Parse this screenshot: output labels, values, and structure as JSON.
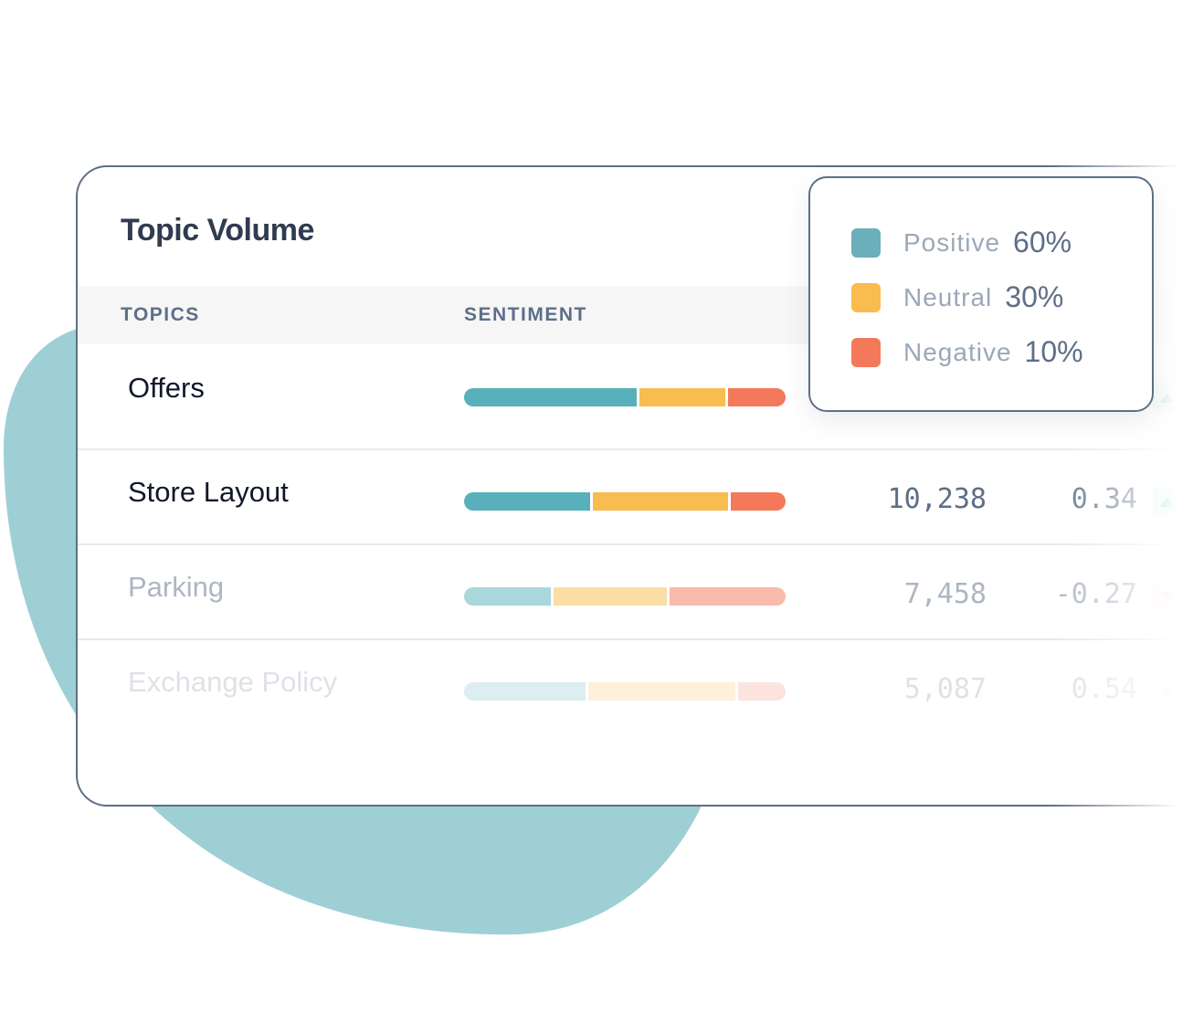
{
  "card": {
    "title": "Topic Volume"
  },
  "table": {
    "headers": {
      "topics": "TOPICS",
      "sentiment": "SENTIMENT"
    },
    "rows": [
      {
        "topic": "Offers",
        "sentiment": {
          "positive": 54,
          "neutral": 27,
          "negative": 18
        },
        "volume": "",
        "score": "",
        "trend": "up",
        "opacity": 1
      },
      {
        "topic": "Store Layout",
        "sentiment": {
          "positive": 39,
          "neutral": 42,
          "negative": 17
        },
        "volume": "10,238",
        "score": "0.34",
        "trend": "up",
        "opacity": 1
      },
      {
        "topic": "Parking",
        "sentiment": {
          "positive": 27,
          "neutral": 35,
          "negative": 36
        },
        "volume": "7,458",
        "score": "-0.27",
        "trend": "down",
        "opacity": 0.5
      },
      {
        "topic": "Exchange Policy",
        "sentiment": {
          "positive": 38,
          "neutral": 46,
          "negative": 15
        },
        "volume": "5,087",
        "score": "0.54",
        "trend": "up",
        "opacity": 0.2
      }
    ]
  },
  "legend": {
    "items": [
      {
        "label": "Positive",
        "value": "60%",
        "color": "#6aafba"
      },
      {
        "label": "Neutral",
        "value": "30%",
        "color": "#f9bc4f"
      },
      {
        "label": "Negative",
        "value": "10%",
        "color": "#f4795b"
      }
    ]
  },
  "colors": {
    "positive": "#58b0ba",
    "neutral": "#f9bc4f",
    "negative": "#f4795b",
    "blob": "#9ecfd5",
    "up": "#1bb581",
    "down": "#f7a08e"
  }
}
